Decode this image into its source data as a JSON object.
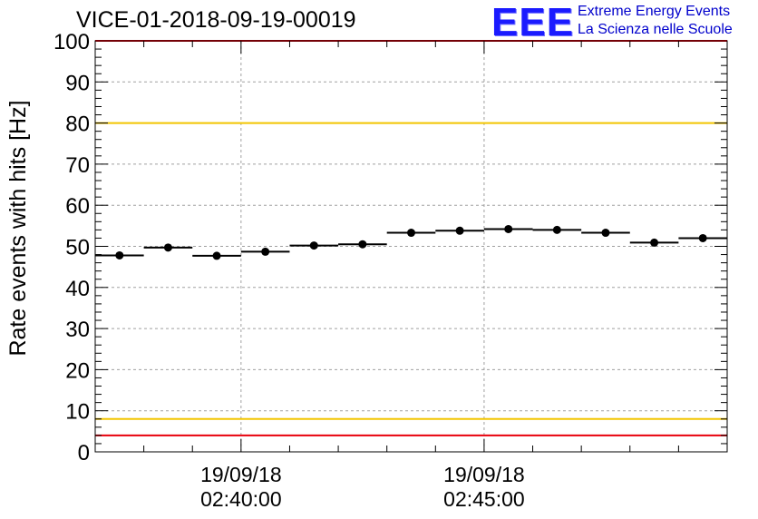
{
  "header": {
    "title": "VICE-01-2018-09-19-00019"
  },
  "logo": {
    "mark": "EEE",
    "line1": "Extreme Energy Events",
    "line2": "La Scienza nelle Scuole"
  },
  "chart_data": {
    "type": "scatter",
    "title": "VICE-01-2018-09-19-00019",
    "xlabel": "",
    "ylabel": "Rate events with hits [Hz]",
    "ylim": [
      0,
      100
    ],
    "xlim_minutes": [
      -3,
      10
    ],
    "y_ticks": [
      0,
      10,
      20,
      30,
      40,
      50,
      60,
      70,
      80,
      90,
      100
    ],
    "x_ticks": [
      {
        "minutes": 0,
        "date": "19/09/18",
        "time": "02:40:00"
      },
      {
        "minutes": 5,
        "date": "19/09/18",
        "time": "02:45:00"
      }
    ],
    "grid": true,
    "bin_width_minutes": 1,
    "points": [
      {
        "x": -2.5,
        "y": 47.8
      },
      {
        "x": -1.5,
        "y": 49.7
      },
      {
        "x": -0.5,
        "y": 47.7
      },
      {
        "x": 0.5,
        "y": 48.7
      },
      {
        "x": 1.5,
        "y": 50.2
      },
      {
        "x": 2.5,
        "y": 50.5
      },
      {
        "x": 3.5,
        "y": 53.3
      },
      {
        "x": 4.5,
        "y": 53.8
      },
      {
        "x": 5.5,
        "y": 54.2
      },
      {
        "x": 6.5,
        "y": 54.0
      },
      {
        "x": 7.5,
        "y": 53.3
      },
      {
        "x": 8.5,
        "y": 50.9
      },
      {
        "x": 9.5,
        "y": 52.0
      }
    ],
    "reference_lines": [
      {
        "y": 100,
        "color": "#e8000b"
      },
      {
        "y": 80,
        "color": "#f2c500"
      },
      {
        "y": 8,
        "color": "#f2c500"
      },
      {
        "y": 4,
        "color": "#e8000b"
      }
    ]
  }
}
